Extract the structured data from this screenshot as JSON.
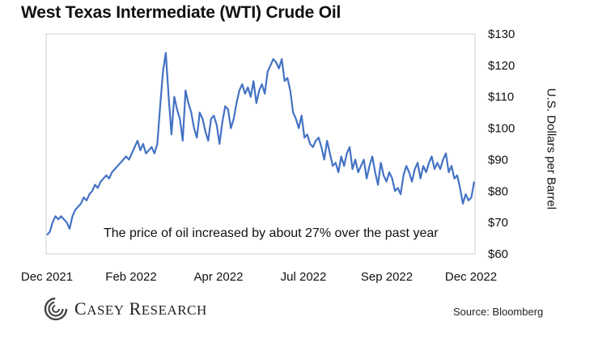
{
  "chart_data": {
    "type": "line",
    "title": "West Texas Intermediate (WTI) Crude Oil",
    "ylabel": "U.S. Dollars per Barrel",
    "xlabel": "",
    "ylim": [
      60,
      130
    ],
    "y_ticks": [
      "$130",
      "$120",
      "$110",
      "$100",
      "$90",
      "$80",
      "$70",
      "$60"
    ],
    "x_ticks": [
      "Dec 2021",
      "Feb 2022",
      "Apr 2022",
      "Jul 2022",
      "Sep 2022",
      "Dec 2022"
    ],
    "annotation": "The price of oil increased by about 27% over the past year",
    "grid": false,
    "line_color": "#4472c4",
    "series": [
      {
        "values": [
          66,
          67,
          70,
          72,
          71,
          72,
          71,
          70,
          68,
          72,
          74,
          75,
          76,
          78,
          77,
          79,
          80,
          82,
          81,
          83,
          84,
          85,
          84,
          86,
          87,
          88,
          89,
          90,
          91,
          90,
          92,
          94,
          96,
          93,
          95,
          92,
          93,
          94,
          92,
          95,
          107,
          118,
          124,
          110,
          98,
          110,
          106,
          103,
          96,
          112,
          108,
          105,
          100,
          97,
          105,
          103,
          99,
          96,
          103,
          104,
          101,
          95,
          102,
          107,
          106,
          100,
          103,
          108,
          112,
          114,
          111,
          113,
          110,
          115,
          108,
          112,
          114,
          111,
          118,
          120,
          122,
          121,
          119,
          122,
          115,
          116,
          112,
          105,
          103,
          100,
          104,
          97,
          98,
          95,
          94,
          96,
          97,
          94,
          90,
          96,
          92,
          88,
          89,
          86,
          91,
          88,
          92,
          94,
          87,
          90,
          86,
          88,
          90,
          84,
          88,
          91,
          86,
          82,
          89,
          85,
          83,
          86,
          84,
          80,
          81,
          79,
          85,
          88,
          86,
          83,
          87,
          89,
          84,
          88,
          86,
          89,
          91,
          87,
          89,
          87,
          90,
          92,
          86,
          88,
          84,
          85,
          81,
          76,
          79,
          77,
          78,
          83
        ]
      }
    ]
  },
  "footer": {
    "logo_first": "C",
    "logo_first_rest": "ASEY",
    "logo_second": "R",
    "logo_second_rest": "ESEARCH",
    "source": "Source: Bloomberg"
  },
  "colors": {
    "line": "#4472c4",
    "frame": "#d0d0d0",
    "logo": "#444444"
  }
}
